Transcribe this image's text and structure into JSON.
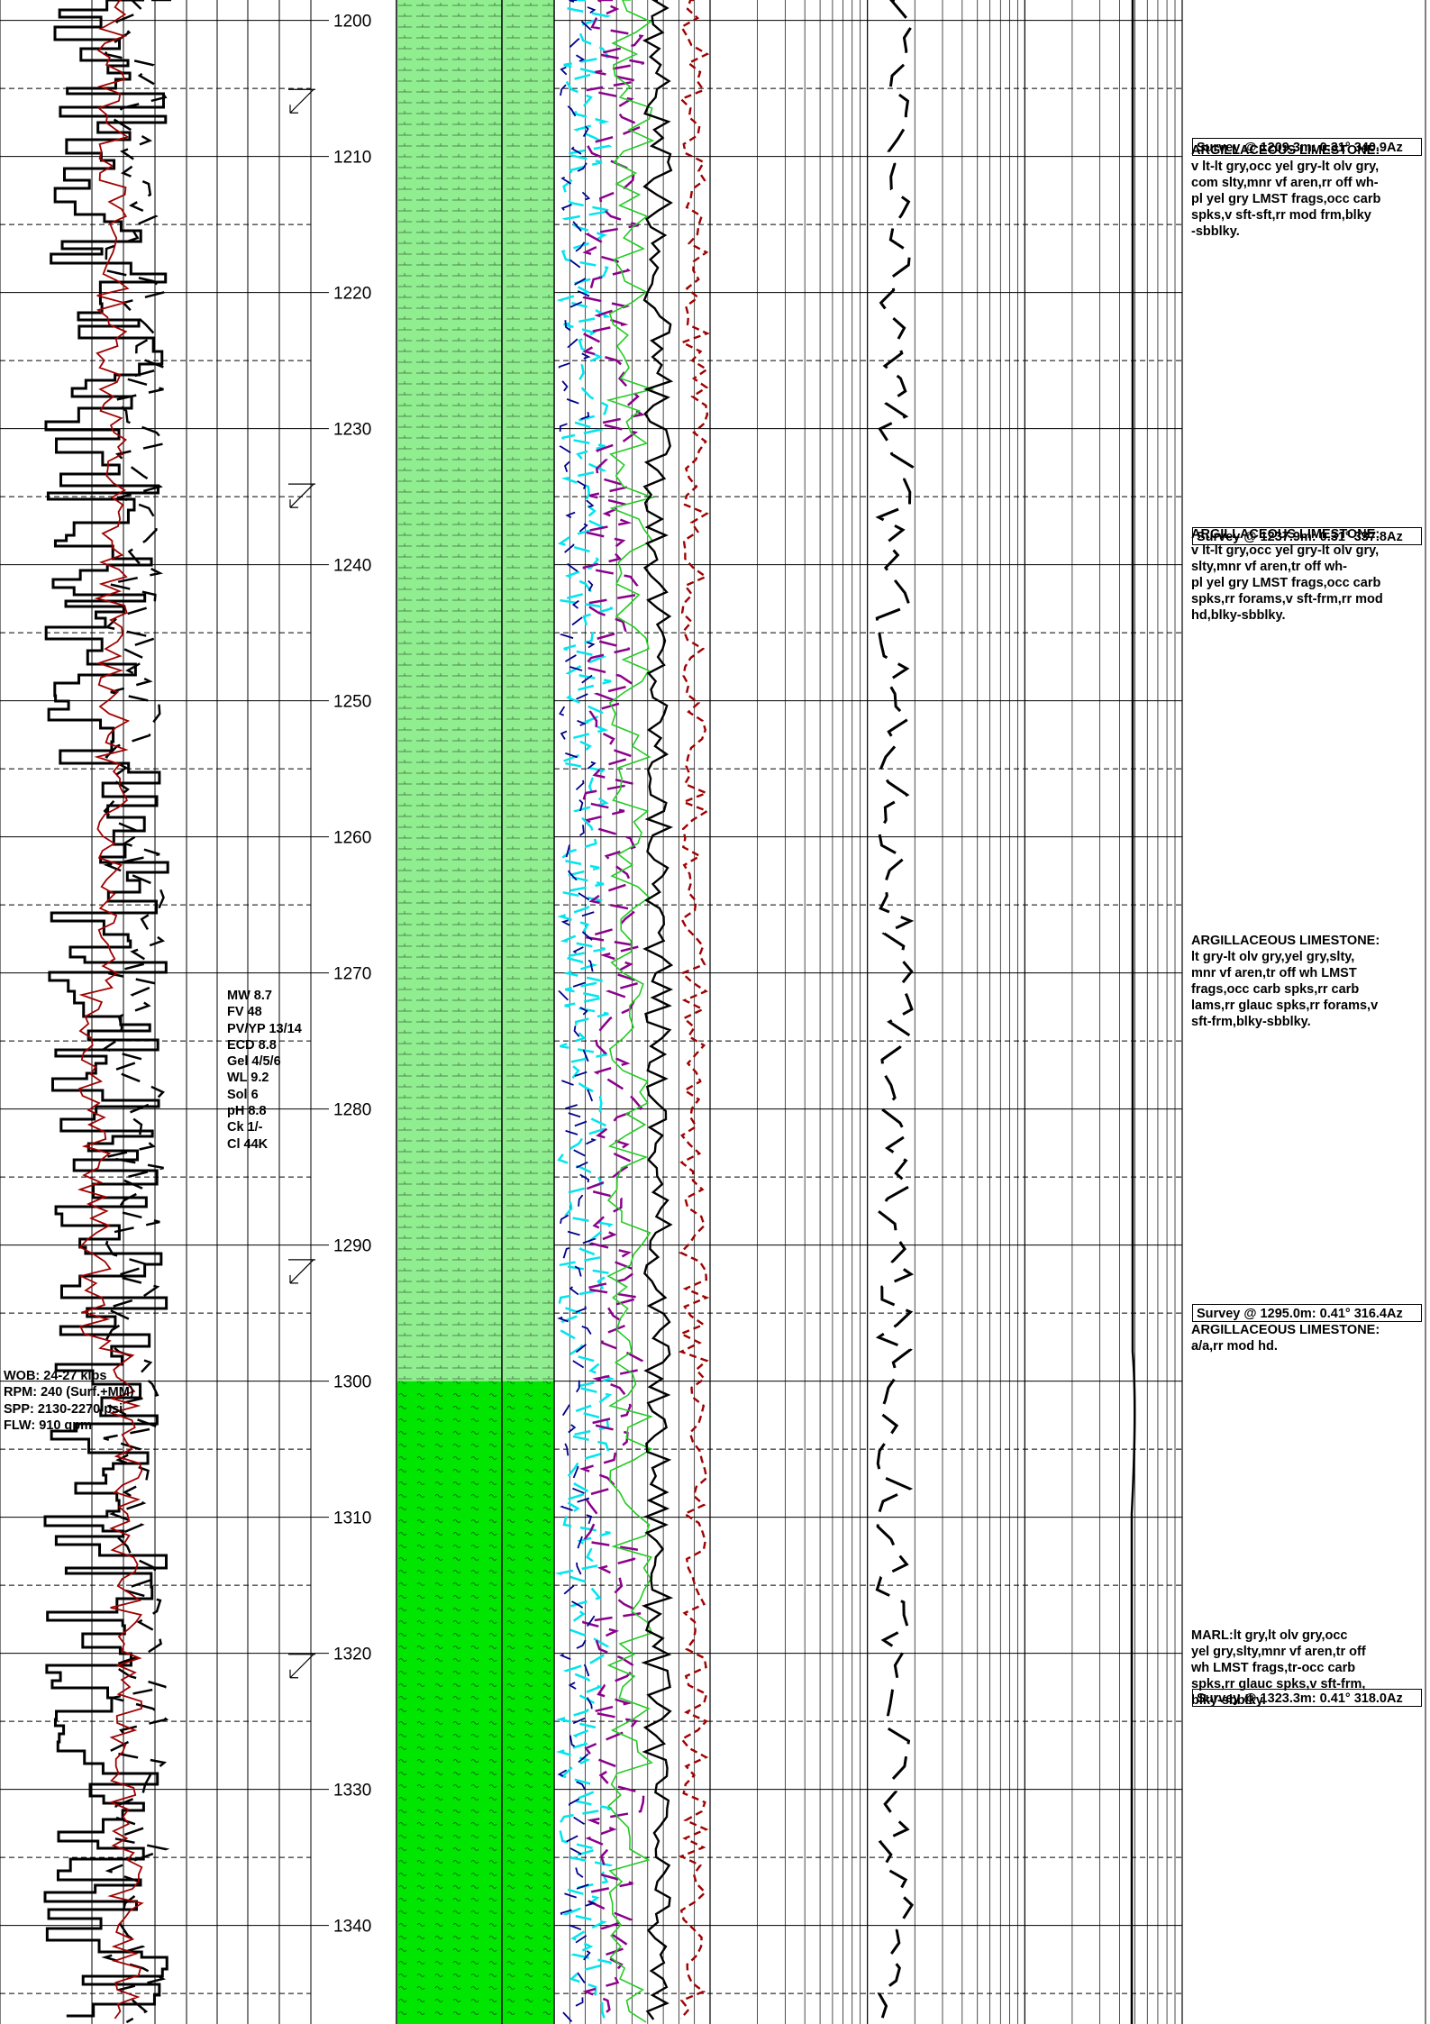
{
  "depth_track": {
    "top_depth": 1198.5,
    "bottom_depth": 1347.5,
    "labels": [
      "1200",
      "1210",
      "1220",
      "1230",
      "1240",
      "1250",
      "1260",
      "1270",
      "1280",
      "1290",
      "1300",
      "1310",
      "1320",
      "1330",
      "1340"
    ]
  },
  "lithology": {
    "intervals": [
      {
        "from": 1198.5,
        "to": 1300,
        "rock": "argillaceous limestone",
        "color": "#90ee90"
      },
      {
        "from": 1300,
        "to": 1347.5,
        "rock": "marl",
        "color": "#00e600"
      }
    ]
  },
  "surveys": [
    {
      "depth": 1209.3,
      "text": "Survey @ 1209.3m: 0.31° 340.9Az"
    },
    {
      "depth": 1237.9,
      "text": "Survey @ 1237.9m: 0.31° 337.8Az"
    },
    {
      "depth": 1295.0,
      "text": "Survey @ 1295.0m: 0.41° 316.4Az"
    },
    {
      "depth": 1323.3,
      "text": "Survey @ 1323.3m: 0.41° 318.0Az"
    }
  ],
  "descriptions": [
    {
      "head": "ARGILLACEOUS LIMESTONE:",
      "lines": [
        "v lt-lt gry,occ yel gry-lt olv gry,",
        "com slty,mnr vf aren,rr off wh-",
        "pl yel gry LMST frags,occ carb",
        "spks,v sft-sft,rr mod frm,blky",
        "-sbblky."
      ]
    },
    {
      "head": "ARGILLACEOUS LIMESTONE:",
      "lines": [
        "v lt-lt gry,occ yel gry-lt olv gry,",
        "slty,mnr vf aren,tr off wh-",
        "pl yel gry LMST frags,occ carb",
        "spks,rr forams,v sft-frm,rr mod",
        "hd,blky-sbblky."
      ]
    },
    {
      "head": "ARGILLACEOUS LIMESTONE:",
      "lines": [
        "lt gry-lt olv gry,yel gry,slty,",
        "mnr vf aren,tr off wh LMST",
        "frags,occ carb spks,rr carb",
        "lams,rr glauc spks,rr forams,v",
        "sft-frm,blky-sbblky."
      ]
    },
    {
      "head": "ARGILLACEOUS LIMESTONE:",
      "lines": [
        "a/a,rr mod hd."
      ]
    },
    {
      "head": "",
      "lines": [
        "MARL:lt gry,lt olv gry,occ",
        "yel gry,slty,mnr vf aren,tr off",
        "wh LMST frags,tr-occ carb",
        "spks,rr glauc spks,v sft-frm,",
        "blky-sbblky."
      ]
    }
  ],
  "mud_properties": [
    "MW 8.7",
    "FV 48",
    "PV/YP 13/14",
    "ECD 8.8",
    "Gel 4/5/6",
    "WL 9.2",
    "Sol 6",
    "pH 8.8",
    "Ck 1/-",
    "Cl 44K"
  ],
  "drilling_parameters": [
    "WOB: 24-27 klbs",
    "RPM: 240 (Surf.+MM)",
    "SPP: 2130-2270 psi",
    "FLW: 910 gpm"
  ],
  "curve_colors": {
    "rop": "#000000",
    "gamma": "#a00000",
    "gas_c1": "#00e5ee",
    "gas_c2": "#8b008b",
    "gas_c3": "#00008b",
    "gas_c4": "#22cc22",
    "total_gas": "#000000",
    "gas_red_dash": "#a00000",
    "background_gas": "#000000"
  },
  "bit_marks": [
    1206,
    1235,
    1292,
    1321
  ]
}
